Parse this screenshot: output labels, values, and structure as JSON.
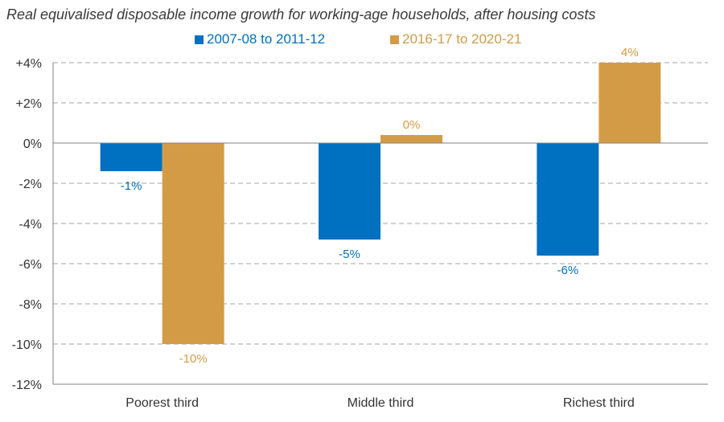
{
  "chart_data": {
    "type": "bar",
    "title": "Real equivalised disposable income growth for working-age households, after housing costs",
    "categories": [
      "Poorest third",
      "Middle third",
      "Richest third"
    ],
    "series": [
      {
        "name": "2007-08 to 2011-12",
        "color": "#0070c0",
        "values": [
          -1.4,
          -4.8,
          -5.6
        ],
        "labels": [
          "-1%",
          "-5%",
          "-6%"
        ]
      },
      {
        "name": "2016-17 to 2020-21",
        "color": "#d49b47",
        "values": [
          -10.0,
          0.4,
          4.0
        ],
        "labels": [
          "-10%",
          "0%",
          "4%"
        ]
      }
    ],
    "ylim": [
      -12,
      4
    ],
    "yticks": [
      4,
      2,
      0,
      -2,
      -4,
      -6,
      -8,
      -10,
      -12
    ],
    "ytick_labels": [
      "+4%",
      "+2%",
      "0%",
      "-2%",
      "-4%",
      "-6%",
      "-8%",
      "-10%",
      "-12%"
    ],
    "grid": true,
    "legend_position": "top-center",
    "xlabel": "",
    "ylabel": ""
  }
}
